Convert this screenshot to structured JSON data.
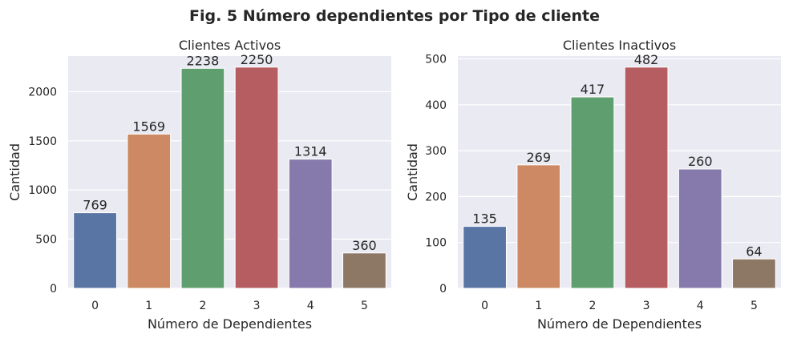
{
  "figure_title": "Fig. 5 Número dependientes por Tipo de cliente",
  "colors": [
    "#5875a4",
    "#cc8963",
    "#5f9e6e",
    "#b55d60",
    "#857aab",
    "#8d7866"
  ],
  "background": "#eaeaf2",
  "chart_data": [
    {
      "type": "bar",
      "title": "Clientes Activos",
      "xlabel": "Número de Dependientes",
      "ylabel": "Cantidad",
      "categories": [
        "0",
        "1",
        "2",
        "3",
        "4",
        "5"
      ],
      "values": [
        769,
        1569,
        2238,
        2250,
        1314,
        360
      ],
      "data_labels": [
        "769",
        "1569",
        "2238",
        "2250",
        "1314",
        "360"
      ],
      "ylim": [
        0,
        2362.5
      ],
      "yticks": [
        0,
        500,
        1000,
        1500,
        2000
      ],
      "ytick_labels": [
        "0",
        "500",
        "1000",
        "1500",
        "2000"
      ],
      "grid": true
    },
    {
      "type": "bar",
      "title": "Clientes Inactivos",
      "xlabel": "Número de Dependientes",
      "ylabel": "Cantidad",
      "categories": [
        "0",
        "1",
        "2",
        "3",
        "4",
        "5"
      ],
      "values": [
        135,
        269,
        417,
        482,
        260,
        64
      ],
      "data_labels": [
        "135",
        "269",
        "417",
        "482",
        "260",
        "64"
      ],
      "ylim": [
        0,
        506.1
      ],
      "yticks": [
        0,
        100,
        200,
        300,
        400,
        500
      ],
      "ytick_labels": [
        "0",
        "100",
        "200",
        "300",
        "400",
        "500"
      ],
      "grid": true
    }
  ]
}
